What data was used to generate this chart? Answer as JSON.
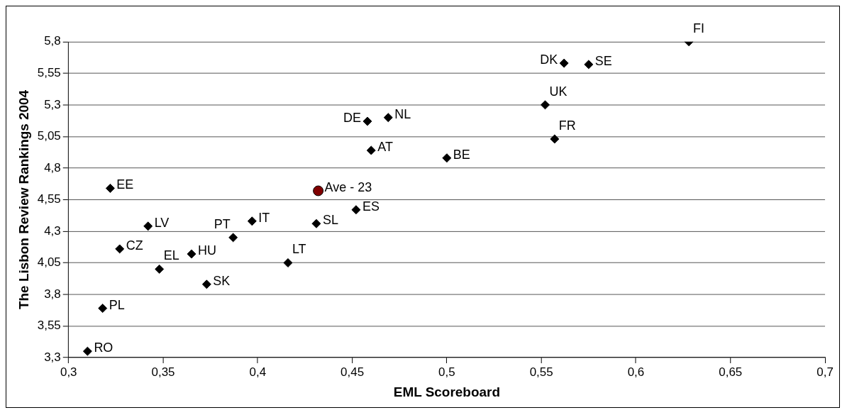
{
  "chart_data": {
    "type": "scatter",
    "xlabel": "EML Scoreboard",
    "ylabel": "The Lisbon Review Rankings 2004",
    "xlim": [
      0.3,
      0.7
    ],
    "xticks": [
      {
        "value": 0.3,
        "label": "0,3"
      },
      {
        "value": 0.35,
        "label": "0,35"
      },
      {
        "value": 0.4,
        "label": "0,4"
      },
      {
        "value": 0.45,
        "label": "0,45"
      },
      {
        "value": 0.5,
        "label": "0,5"
      },
      {
        "value": 0.55,
        "label": "0,55"
      },
      {
        "value": 0.6,
        "label": "0,6"
      },
      {
        "value": 0.65,
        "label": "0,65"
      },
      {
        "value": 0.7,
        "label": "0,7"
      }
    ],
    "ylim": [
      3.3,
      5.8
    ],
    "yticks": [
      {
        "value": 3.3,
        "label": "3,3"
      },
      {
        "value": 3.55,
        "label": "3,55"
      },
      {
        "value": 3.8,
        "label": "3,8"
      },
      {
        "value": 4.05,
        "label": "4,05"
      },
      {
        "value": 4.3,
        "label": "4,3"
      },
      {
        "value": 4.55,
        "label": "4,55"
      },
      {
        "value": 4.8,
        "label": "4,8"
      },
      {
        "value": 5.05,
        "label": "5,05"
      },
      {
        "value": 5.3,
        "label": "5,3"
      },
      {
        "value": 5.55,
        "label": "5,55"
      },
      {
        "value": 5.8,
        "label": "5,8"
      }
    ],
    "grid": "y",
    "legend": false,
    "series": [
      {
        "color": "#000000",
        "marker": "diamond",
        "x": [
          0.322,
          0.342,
          0.327,
          0.348,
          0.365,
          0.373,
          0.387,
          0.397,
          0.416,
          0.431,
          0.318,
          0.31,
          0.452,
          0.458,
          0.469,
          0.46,
          0.5,
          0.562,
          0.575,
          0.628,
          0.552,
          0.557
        ],
        "values": [
          4.64,
          4.34,
          4.16,
          4.0,
          4.12,
          3.88,
          4.25,
          4.38,
          4.05,
          4.36,
          3.69,
          3.35,
          4.47,
          5.17,
          5.2,
          4.94,
          4.88,
          5.63,
          5.62,
          5.8,
          5.3,
          5.03
        ]
      },
      {
        "name": "Ave - 23",
        "color": "#800000",
        "marker": "circle",
        "x": [
          0.432
        ],
        "values": [
          4.62
        ]
      }
    ],
    "annotations": [
      {
        "text": "EE",
        "x": 0.322,
        "y": 4.64
      },
      {
        "text": "LV",
        "x": 0.342,
        "y": 4.34
      },
      {
        "text": "CZ",
        "x": 0.327,
        "y": 4.16
      },
      {
        "text": "EL",
        "x": 0.348,
        "y": 4.0
      },
      {
        "text": "HU",
        "x": 0.365,
        "y": 4.12
      },
      {
        "text": "SK",
        "x": 0.373,
        "y": 3.88
      },
      {
        "text": "PT",
        "x": 0.387,
        "y": 4.25
      },
      {
        "text": "IT",
        "x": 0.397,
        "y": 4.38
      },
      {
        "text": "LT",
        "x": 0.416,
        "y": 4.05
      },
      {
        "text": "SL",
        "x": 0.431,
        "y": 4.36
      },
      {
        "text": "PL",
        "x": 0.318,
        "y": 3.69
      },
      {
        "text": "RO",
        "x": 0.31,
        "y": 3.35
      },
      {
        "text": "ES",
        "x": 0.452,
        "y": 4.47
      },
      {
        "text": "DE",
        "x": 0.458,
        "y": 5.17
      },
      {
        "text": "NL",
        "x": 0.469,
        "y": 5.2
      },
      {
        "text": "AT",
        "x": 0.46,
        "y": 4.94
      },
      {
        "text": "BE",
        "x": 0.5,
        "y": 4.88
      },
      {
        "text": "DK",
        "x": 0.562,
        "y": 5.63
      },
      {
        "text": "SE",
        "x": 0.575,
        "y": 5.62
      },
      {
        "text": "FI",
        "x": 0.628,
        "y": 5.8
      },
      {
        "text": "UK",
        "x": 0.552,
        "y": 5.3
      },
      {
        "text": "FR",
        "x": 0.557,
        "y": 5.03
      }
    ]
  }
}
